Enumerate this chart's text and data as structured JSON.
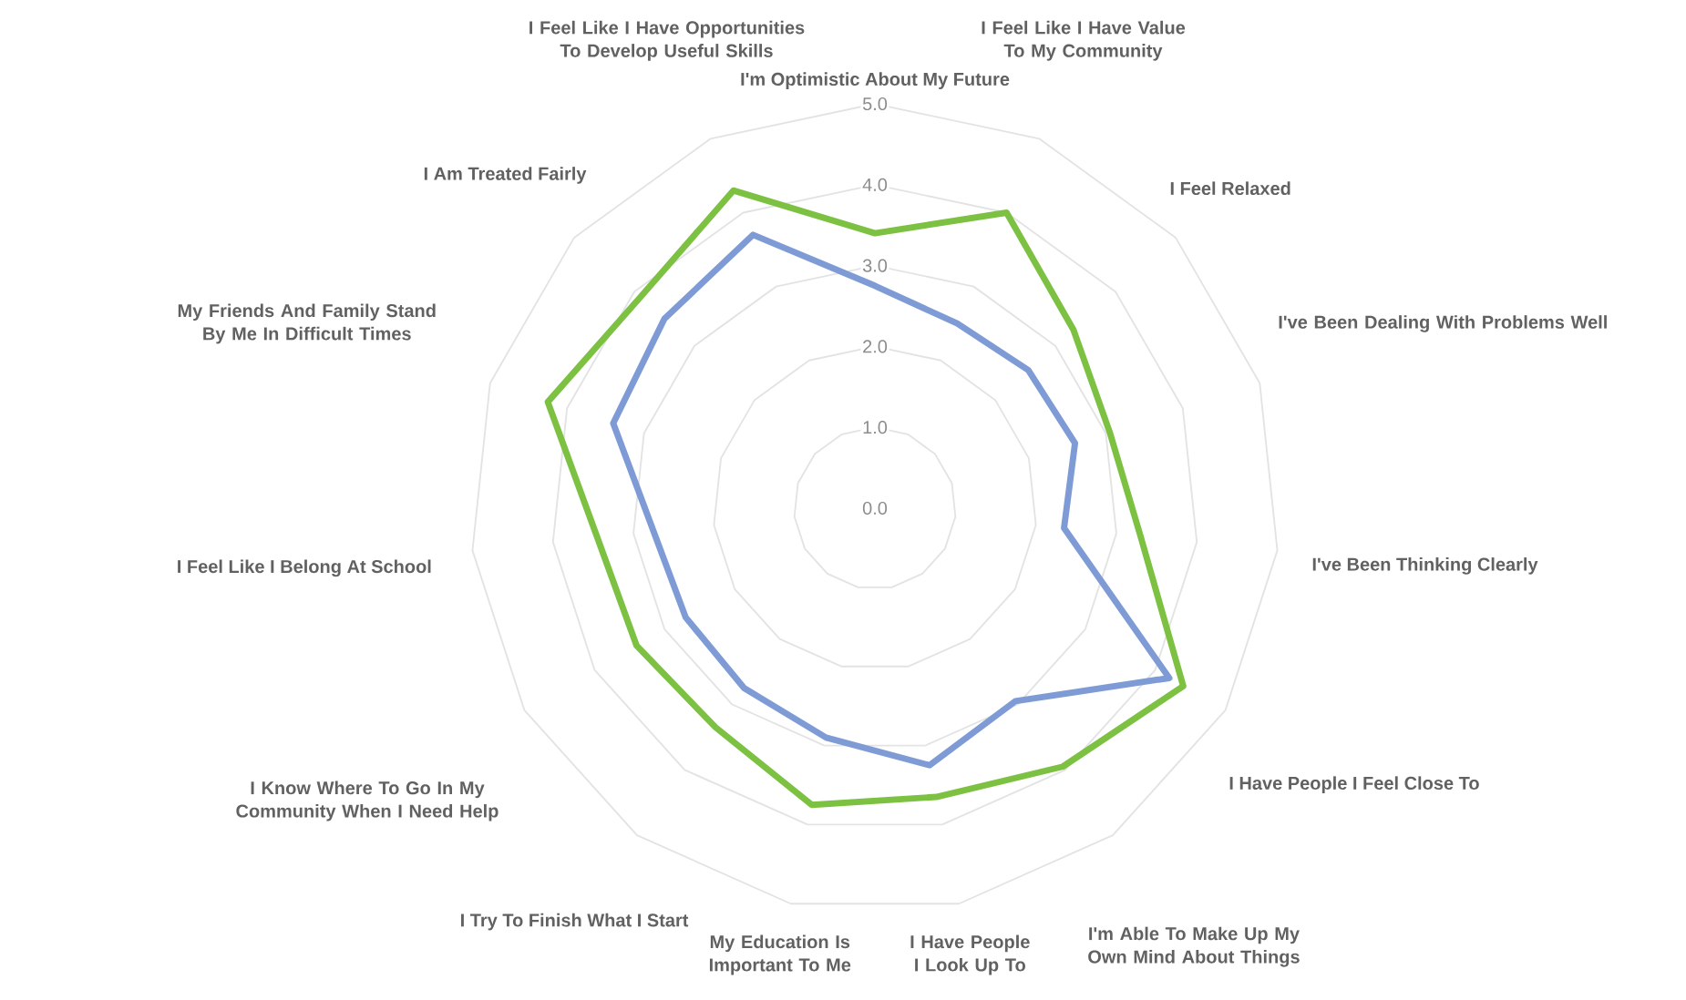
{
  "chart_data": {
    "type": "radar",
    "categories": [
      "I'm Optimistic About My Future",
      "I Feel Like I Have Value To My Community",
      "I Feel Relaxed",
      "I've Been Dealing With Problems Well",
      "I've Been Thinking Clearly",
      "I Have People I Feel Close To",
      "I'm Able To Make Up My Own Mind About Things",
      "I Have People I Look Up To",
      "My Education Is Important To Me",
      "I Try To Finish What I Start",
      "I Know Where To Go In My Community When I Need Help",
      "I Feel Like I Belong At School",
      "My Friends And Family Stand By Me In Difficult Times",
      "I Am Treated Fairly",
      "I Feel Like I Have Opportunities To Develop Useful Skills"
    ],
    "series": [
      {
        "color": "#7f9bd6",
        "values": [
          2.75,
          2.5,
          2.55,
          2.6,
          2.35,
          4.2,
          2.95,
          3.25,
          2.9,
          2.75,
          2.7,
          2.75,
          3.4,
          3.5,
          3.7
        ]
      },
      {
        "color": "#7cc142",
        "values": [
          3.4,
          4.0,
          3.3,
          3.05,
          3.3,
          4.4,
          3.95,
          3.65,
          3.75,
          3.35,
          3.4,
          3.45,
          4.25,
          3.9,
          4.3
        ]
      }
    ],
    "ylim": [
      0,
      5
    ],
    "yticks": [
      {
        "value": 0,
        "label": "0.0"
      },
      {
        "value": 1,
        "label": "1.0"
      },
      {
        "value": 2,
        "label": "2.0"
      },
      {
        "value": 3,
        "label": "3.0"
      },
      {
        "value": 4,
        "label": "4.0"
      },
      {
        "value": 5,
        "label": "5.0"
      }
    ],
    "grid": true
  }
}
